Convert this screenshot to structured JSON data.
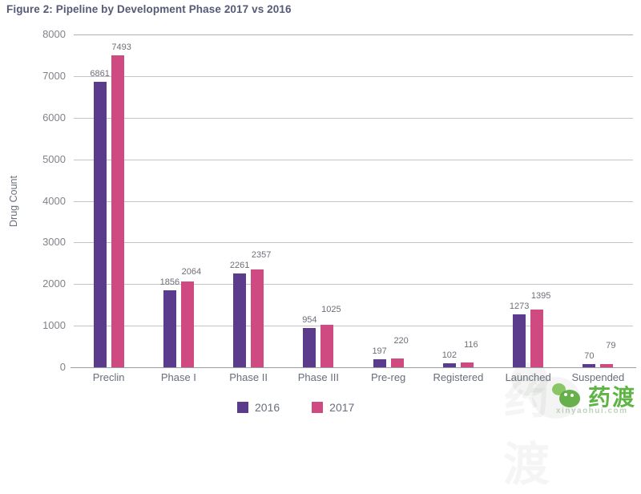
{
  "title": "Figure 2: Pipeline by Development Phase 2017 vs 2016",
  "chart_data": {
    "type": "bar",
    "title": "Figure 2: Pipeline by Development Phase 2017 vs 2016",
    "xlabel": "",
    "ylabel": "Drug Count",
    "ylim": [
      0,
      8000
    ],
    "ytick_step": 1000,
    "grid": true,
    "legend_position": "bottom",
    "categories": [
      "Preclin",
      "Phase I",
      "Phase II",
      "Phase III",
      "Pre-reg",
      "Registered",
      "Launched",
      "Suspended"
    ],
    "series": [
      {
        "name": "2016",
        "color": "#5b3b8c",
        "values": [
          6861,
          1856,
          2261,
          954,
          197,
          102,
          1273,
          70
        ]
      },
      {
        "name": "2017",
        "color": "#d04a82",
        "values": [
          7493,
          2064,
          2357,
          1025,
          220,
          116,
          1395,
          79
        ]
      }
    ],
    "colors": {
      "series_2016": "#5b3b8c",
      "series_2017": "#d04a82",
      "title_text": "#555a75",
      "axis_text": "#696d7c"
    }
  },
  "watermark": {
    "logo_icon": "green-leaf-logo",
    "logo_text": "药渡",
    "url_text": "xinyaohui.com"
  }
}
